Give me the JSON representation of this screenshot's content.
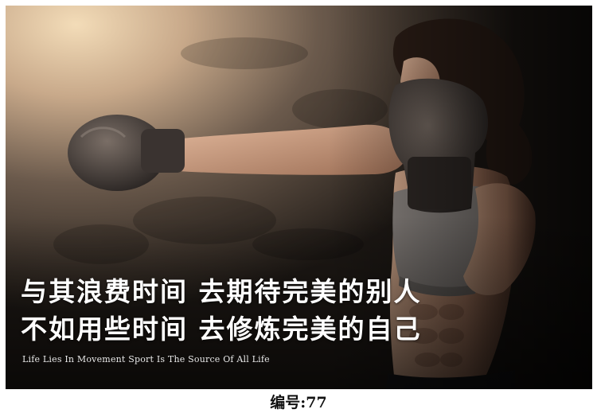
{
  "poster": {
    "headline_line1": "与其浪费时间 去期待完美的别人",
    "headline_line2": "不如用些时间 去修炼完美的自己",
    "tagline": "Life Lies In Movement Sport Is The Source Of All Life",
    "photo_subject": "woman-boxer-punching",
    "colors": {
      "background": "#2a241e",
      "light_glow": "#f3dcb8",
      "text": "#ffffff"
    }
  },
  "caption": {
    "text": "编号:77"
  }
}
